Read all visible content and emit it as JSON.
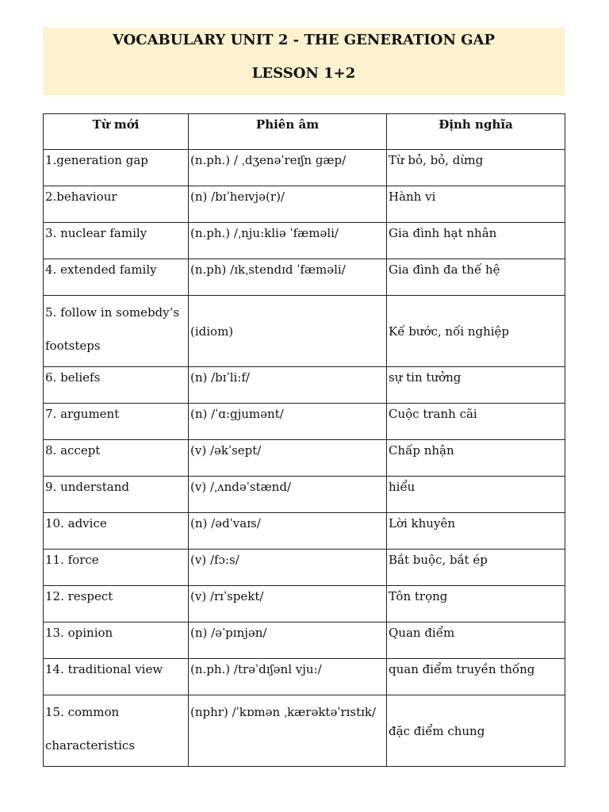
{
  "title": "VOCABULARY UNIT 2 - THE GENERATION GAP",
  "subtitle": "LESSON 1+2",
  "table": {
    "headers": [
      "Từ mới",
      "Phiên âm",
      "Định nghĩa"
    ],
    "rows": [
      {
        "word": "1.generation gap",
        "phonetic": "(n.ph.) / ˌdʒenəˈreɪʃn ɡæp/",
        "meaning": "Từ bỏ, bỏ, dừng"
      },
      {
        "word": "2.behaviour",
        "phonetic": "(n) /bɪˈheɪvjə(r)/",
        "meaning": "Hành vi"
      },
      {
        "word": "3. nuclear family",
        "phonetic": "(n.ph.) /ˌnju:kliə ˈfæməli/",
        "meaning": "Gia đình hạt nhân"
      },
      {
        "word": "4. extended family",
        "phonetic": "(n.ph)  /ɪkˌstendɪd ˈfæməli/",
        "meaning": "Gia đình đa thế hệ"
      },
      {
        "word": "5. follow in somebdy’s footsteps",
        "phonetic": "(idiom)",
        "meaning": "Kế bước, nối nghiệp"
      },
      {
        "word": "6. beliefs",
        "phonetic": "(n) /bɪˈli:f/",
        "meaning": " sự tin tưởng"
      },
      {
        "word": "7. argument",
        "phonetic": "(n) /ˈɑ:gjumənt/",
        "meaning": "Cuộc tranh cãi"
      },
      {
        "word": "8. accept",
        "phonetic": "(v)  /əkˈsept/",
        "meaning": "Chấp nhận"
      },
      {
        "word": "9. understand",
        "phonetic": "(v) /ˌʌndəˈstænd/",
        "meaning": "hiểu"
      },
      {
        "word": "10. advice",
        "phonetic": "(n) /ədˈvaɪs/",
        "meaning": "Lời khuyên"
      },
      {
        "word": "11. force",
        "phonetic": "(v) /fɔ:s/",
        "meaning": "Bắt buộc, bắt ép"
      },
      {
        "word": "12. respect",
        "phonetic": "(v) /rɪˈspekt/",
        "meaning": "Tôn trọng"
      },
      {
        "word": "13. opinion",
        "phonetic": "(n) /əˈpɪnjən/",
        "meaning": "Quan điểm"
      },
      {
        "word": "14. traditional view",
        "phonetic": "(n.ph.) /trəˈdɪʃənl vju:/",
        "meaning": "quan điểm truyền thống"
      },
      {
        "word": "15. common characteristics",
        "phonetic": "(nphr) /ˈkɒmən ˌkærəktəˈrɪstɪk/",
        "meaning": "đặc điểm chung"
      }
    ]
  },
  "colors": {
    "title_background": "#fdf2d0"
  }
}
